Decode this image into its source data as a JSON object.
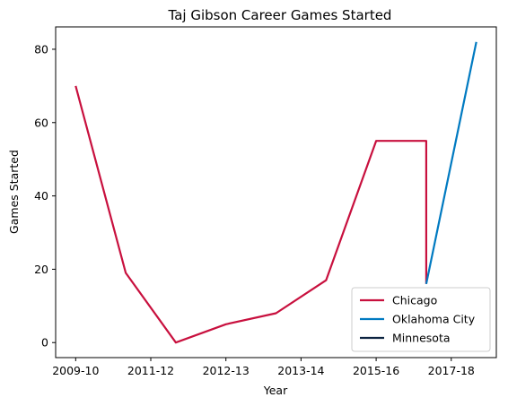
{
  "chart_data": {
    "type": "line",
    "title": "Taj Gibson Career Games Started",
    "xlabel": "Year",
    "ylabel": "Games Started",
    "x_tick_labels": [
      "2009-10",
      "2011-12",
      "2012-13",
      "2013-14",
      "2015-16",
      "2017-18"
    ],
    "y_ticks": [
      0,
      20,
      40,
      60,
      80
    ],
    "ylim": [
      -4.1,
      86.1
    ],
    "grid": false,
    "legend_position": "bottom-right",
    "series": [
      {
        "name": "Chicago",
        "color": "#c8103e",
        "points": [
          {
            "x": 0,
            "y": 70
          },
          {
            "x": 1,
            "y": 19
          },
          {
            "x": 2,
            "y": 0
          },
          {
            "x": 3,
            "y": 5
          },
          {
            "x": 4,
            "y": 8
          },
          {
            "x": 5,
            "y": 17
          },
          {
            "x": 6,
            "y": 55
          },
          {
            "x": 7,
            "y": 55
          },
          {
            "x": 7,
            "y": 16
          }
        ]
      },
      {
        "name": "Oklahoma City",
        "color": "#007ac1",
        "points": [
          {
            "x": 7,
            "y": 16
          },
          {
            "x": 8,
            "y": 82
          }
        ]
      },
      {
        "name": "Minnesota",
        "color": "#0c2340",
        "points": []
      }
    ]
  }
}
